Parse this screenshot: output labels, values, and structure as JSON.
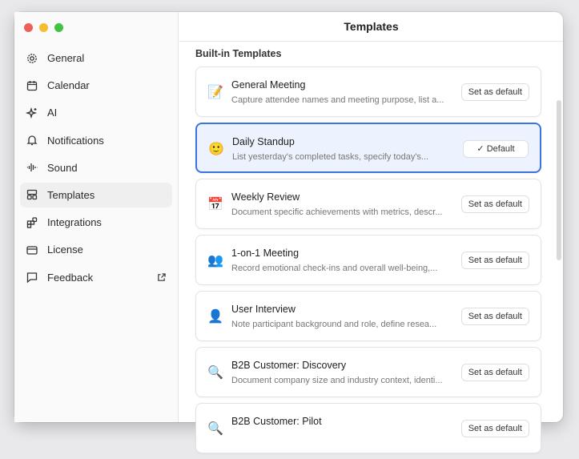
{
  "window": {
    "title": "Templates"
  },
  "sidebar": {
    "items": [
      {
        "label": "General",
        "icon": "gear-icon"
      },
      {
        "label": "Calendar",
        "icon": "calendar-icon"
      },
      {
        "label": "AI",
        "icon": "sparkles-icon"
      },
      {
        "label": "Notifications",
        "icon": "bell-icon"
      },
      {
        "label": "Sound",
        "icon": "waveform-icon"
      },
      {
        "label": "Templates",
        "icon": "templates-icon",
        "active": true
      },
      {
        "label": "Integrations",
        "icon": "integrations-icon"
      },
      {
        "label": "License",
        "icon": "card-icon"
      },
      {
        "label": "Feedback",
        "icon": "chat-icon",
        "external": true
      }
    ]
  },
  "main": {
    "section_title": "Built-in Templates",
    "templates": [
      {
        "emoji": "📝",
        "title": "General Meeting",
        "desc": "Capture attendee names and meeting purpose, list a...",
        "button": "Set as default"
      },
      {
        "emoji": "🙂",
        "title": "Daily Standup",
        "desc": "List yesterday's completed tasks, specify today's...",
        "button": "✓ Default",
        "default": true
      },
      {
        "emoji": "📅",
        "title": "Weekly Review",
        "desc": "Document specific achievements with metrics, descr...",
        "button": "Set as default"
      },
      {
        "emoji": "👥",
        "title": "1-on-1 Meeting",
        "desc": "Record emotional check-ins and overall well-being,...",
        "button": "Set as default"
      },
      {
        "emoji": "👤",
        "title": "User Interview",
        "desc": "Note participant background and role, define resea...",
        "button": "Set as default"
      },
      {
        "emoji": "🔍",
        "title": "B2B Customer: Discovery",
        "desc": "Document company size and industry context, identi...",
        "button": "Set as default"
      },
      {
        "emoji": "🔍",
        "title": "B2B Customer: Pilot",
        "desc": "",
        "button": "Set as default"
      }
    ]
  },
  "colors": {
    "accent": "#3b73e0",
    "selected_bg": "#edf3fe"
  }
}
